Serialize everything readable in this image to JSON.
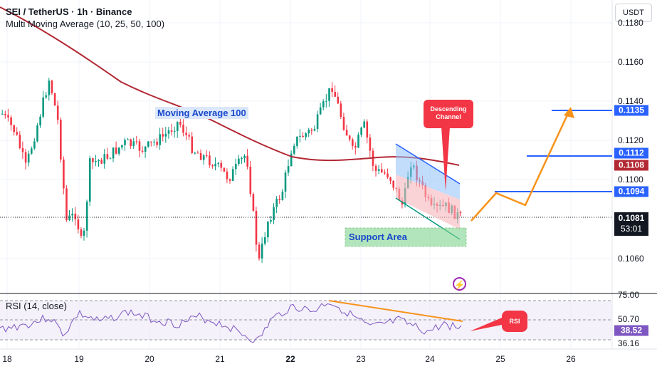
{
  "header": {
    "symbol_line": "SEI / TetherUS · 1h · Binance",
    "indicator_line": "Multi Moving Average (10, 25, 50, 100)"
  },
  "rsi_panel": {
    "label": "RSI (14, close)"
  },
  "currency_button": "USDT",
  "price_axis": {
    "ticks": [
      "0.1180",
      "0.1160",
      "0.1140",
      "0.1120",
      "0.1100",
      "0.1060"
    ],
    "badges": {
      "target_top": "0.1135",
      "target_mid": "0.1112",
      "ma_value": "0.1108",
      "target_low": "0.1094"
    },
    "current_price": "0.1081",
    "countdown": "53:01"
  },
  "rsi_axis": {
    "ticks": [
      "75.00",
      "50.70",
      "36.16"
    ],
    "current": "38.52"
  },
  "time_axis": [
    "18",
    "19",
    "20",
    "21",
    "22",
    "23",
    "24",
    "25",
    "26"
  ],
  "annotations": {
    "moving_average_label": "Moving Average 100",
    "support_label": "Support Area",
    "descending_channel_label": "Descending Channel",
    "rsi_bubble": "RSI"
  },
  "colors": {
    "up": "#089981",
    "down": "#f23645",
    "ma100": "#b22833",
    "target_line": "#2962ff",
    "projection": "#f7931a",
    "rsi_line": "#7e57c2"
  }
}
